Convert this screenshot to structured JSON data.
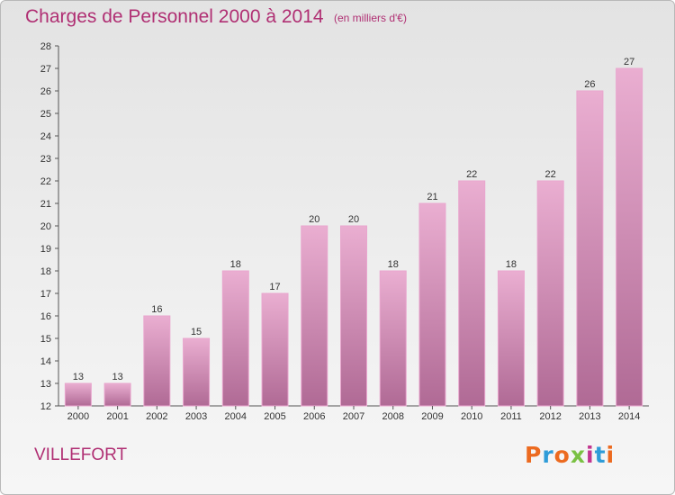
{
  "header": {
    "title": "Charges de Personnel 2000 à 2014",
    "subtitle": "(en milliers d'€)"
  },
  "location": "VILLEFORT",
  "logo": {
    "text": "Proxiti",
    "letter_colors": [
      "#ec6a1f",
      "#2f9cd8",
      "#ec6a1f",
      "#7ac143",
      "#c2358f",
      "#2f9cd8",
      "#ec6a1f"
    ]
  },
  "colors": {
    "accent": "#b02f73",
    "bar_top": "#eaaed1",
    "bar_bottom": "#b06a95",
    "bar_edge": "#e9a6ce"
  },
  "chart_data": {
    "type": "bar",
    "title": "Charges de Personnel 2000 à 2014",
    "subtitle": "(en milliers d'€)",
    "categories": [
      "2000",
      "2001",
      "2002",
      "2003",
      "2004",
      "2005",
      "2006",
      "2007",
      "2008",
      "2009",
      "2010",
      "2011",
      "2012",
      "2013",
      "2014"
    ],
    "values": [
      13,
      13,
      16,
      15,
      18,
      17,
      20,
      20,
      18,
      21,
      22,
      18,
      22,
      26,
      27
    ],
    "ylim": [
      12,
      28
    ],
    "yticks": [
      12,
      13,
      14,
      15,
      16,
      17,
      18,
      19,
      20,
      21,
      22,
      23,
      24,
      25,
      26,
      27,
      28
    ],
    "grid": false,
    "data_labels": true
  }
}
